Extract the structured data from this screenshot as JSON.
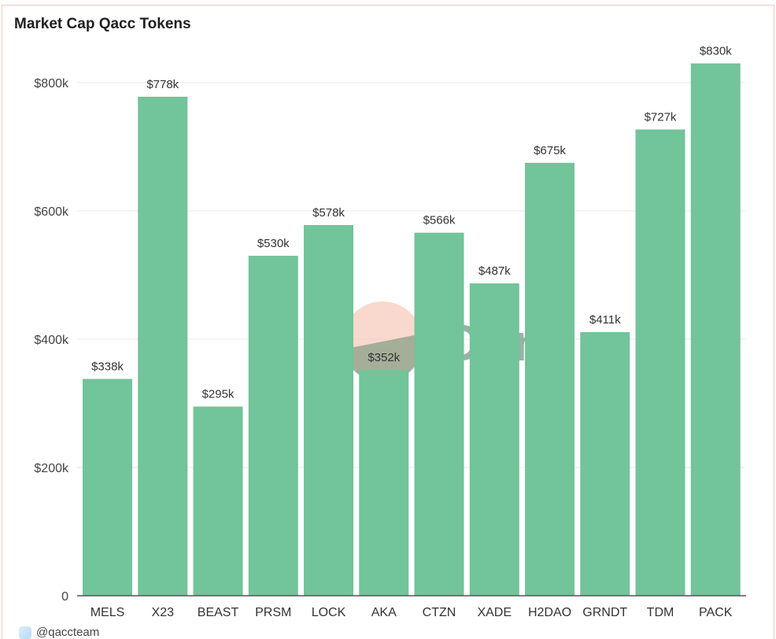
{
  "title": "Market Cap Qacc Tokens",
  "footer": {
    "handle": "@qaccteam"
  },
  "watermark": {
    "text": "Dune"
  },
  "colors": {
    "bar": "#72c49a",
    "grid": "#e8e8e8",
    "axis": "#555555"
  },
  "chart_data": {
    "type": "bar",
    "title": "Market Cap Qacc Tokens",
    "xlabel": "",
    "ylabel": "",
    "categories": [
      "MELS",
      "X23",
      "BEAST",
      "PRSM",
      "LOCK",
      "AKA",
      "CTZN",
      "XADE",
      "H2DAO",
      "GRNDT",
      "TDM",
      "PACK"
    ],
    "values": [
      338,
      778,
      295,
      530,
      578,
      352,
      566,
      487,
      675,
      411,
      727,
      830
    ],
    "value_labels": [
      "$338k",
      "$778k",
      "$295k",
      "$530k",
      "$578k",
      "$352k",
      "$566k",
      "$487k",
      "$675k",
      "$411k",
      "$727k",
      "$830k"
    ],
    "unit": "k",
    "ylim": [
      0,
      800
    ],
    "yticks": [
      0,
      200,
      400,
      600,
      800
    ],
    "ytick_labels": [
      "0",
      "$200k",
      "$400k",
      "$600k",
      "$800k"
    ],
    "grid": true,
    "legend": "none"
  }
}
